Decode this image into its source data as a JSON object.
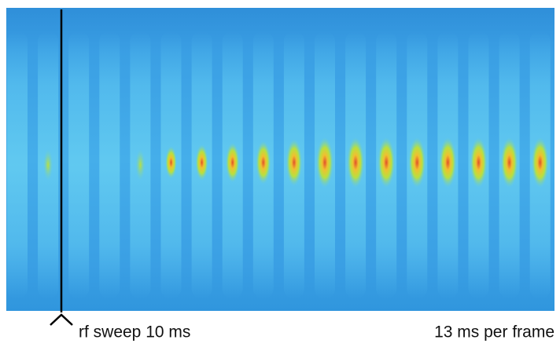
{
  "labels": {
    "left": "rf sweep 10 ms",
    "right": "13 ms per frame"
  }
}
